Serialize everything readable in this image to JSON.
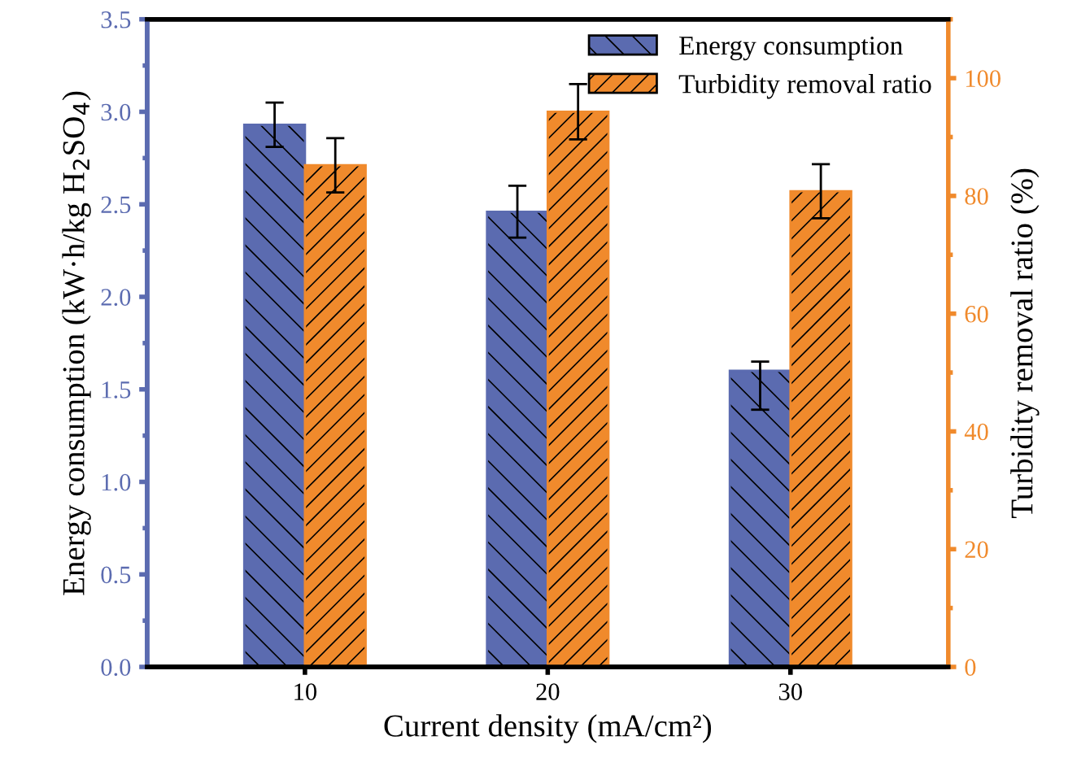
{
  "chart_data": {
    "type": "bar",
    "xlabel": "Current density (mA/cm²)",
    "ylabel": "Energy consumption (kW·h/kg H$_{2}$SO$_{4}$)",
    "y2label": "Turbidity removal ratio (%)",
    "categories": [
      "10",
      "20",
      "30"
    ],
    "series": [
      {
        "name": "Energy consumption",
        "color": "#5b6bb0",
        "values": [
          2.93,
          2.46,
          1.6
        ],
        "errors": [
          0.12,
          0.14,
          [
            1.39,
            1.65
          ]
        ]
      },
      {
        "name": "Turbidity removal ratio",
        "color": "#f08a2c",
        "values": [
          85.2,
          94.3,
          80.8
        ],
        "errors": [
          4.6,
          4.7,
          4.6
        ],
        "axis": "y2"
      }
    ],
    "ylim": [
      0,
      3.5
    ],
    "yticks": [
      {
        "value": 0,
        "label": "0.0"
      },
      0.5,
      {
        "value": 1,
        "label": "1.0"
      },
      1.5,
      {
        "value": 2,
        "label": "2.0"
      },
      2.5,
      {
        "value": 3,
        "label": "3.0"
      },
      3.5
    ],
    "y2lim": [
      0,
      110
    ],
    "y2ticks": [
      0,
      20,
      40,
      60,
      80,
      100
    ],
    "legend": "top right",
    "grid": false
  }
}
